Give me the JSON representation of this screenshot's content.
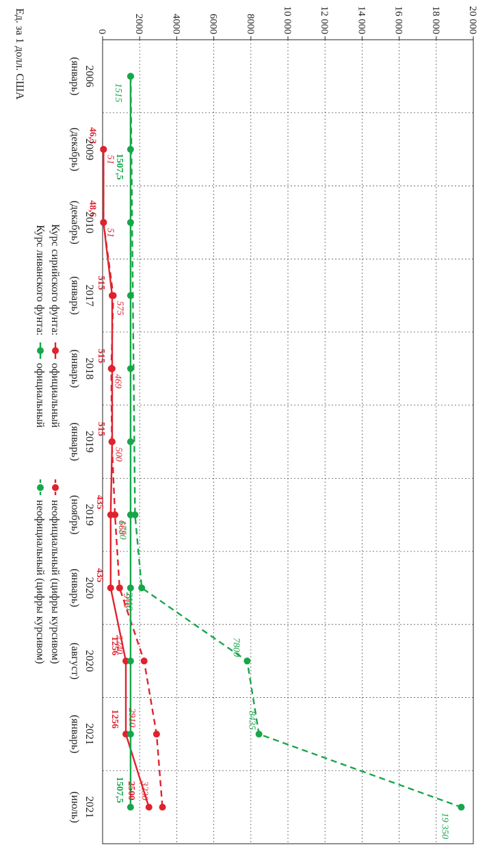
{
  "chart_data": {
    "type": "line",
    "ylabel": "Ед. за 1 долл. США",
    "ylim": [
      0,
      20000
    ],
    "yticks": [
      0,
      2000,
      4000,
      6000,
      8000,
      10000,
      12000,
      14000,
      16000,
      18000,
      20000
    ],
    "ytick_labels": [
      "0",
      "2000",
      "4000",
      "6000",
      "8000",
      "10 000",
      "12 000",
      "14 000",
      "16 000",
      "18 000",
      "20 000"
    ],
    "categories": [
      [
        "2006",
        "(январь)"
      ],
      [
        "2009",
        "(декабрь)"
      ],
      [
        "2010",
        "(декабрь)"
      ],
      [
        "2017",
        "(январь)"
      ],
      [
        "2018",
        "(январь)"
      ],
      [
        "2019",
        "(январь)"
      ],
      [
        "2019",
        "(ноябрь)"
      ],
      [
        "2020",
        "(январь)"
      ],
      [
        "2020",
        "(август)"
      ],
      [
        "2021",
        "(январь)"
      ],
      [
        "2021",
        "(июль)"
      ]
    ],
    "grid": true,
    "series": [
      {
        "key": "syr_official",
        "name": "официальный",
        "group": "Курс сирийского фунта:",
        "color": "#e0222e",
        "dashed": false,
        "points": [
          [
            1,
            46.3
          ],
          [
            2,
            48.6
          ],
          [
            3,
            515
          ],
          [
            4,
            515
          ],
          [
            5,
            515
          ],
          [
            6,
            435
          ],
          [
            7,
            435
          ],
          [
            8,
            1256
          ],
          [
            9,
            1256
          ],
          [
            10,
            2500
          ]
        ],
        "labels": [
          "46,3",
          "48,6",
          "515",
          "515",
          "515",
          "435",
          "435",
          "1256",
          "1256",
          "2500"
        ],
        "label_style": "bold"
      },
      {
        "key": "syr_unofficial",
        "name": "неофициальный (цифры курсивом)",
        "group": "Курс сирийского фунта:",
        "color": "#e0222e",
        "dashed": true,
        "points": [
          [
            1,
            51
          ],
          [
            2,
            51
          ],
          [
            3,
            575
          ],
          [
            4,
            469
          ],
          [
            5,
            500
          ],
          [
            6,
            668
          ],
          [
            7,
            916
          ],
          [
            8,
            2240
          ],
          [
            9,
            2910
          ],
          [
            10,
            3230
          ]
        ],
        "labels": [
          "51",
          "51",
          "575",
          "469",
          "500",
          "668",
          "916",
          "2240",
          "2910",
          "3230"
        ],
        "label_style": "italic"
      },
      {
        "key": "leb_official",
        "name": "официальный",
        "group": "Курс ливанского фунта:",
        "color": "#17a64a",
        "dashed": false,
        "points": [
          [
            0,
            1507.5
          ],
          [
            1,
            1507.5
          ],
          [
            2,
            1507.5
          ],
          [
            3,
            1507.5
          ],
          [
            4,
            1507.5
          ],
          [
            5,
            1507.5
          ],
          [
            6,
            1507.5
          ],
          [
            7,
            1507.5
          ],
          [
            8,
            1507.5
          ],
          [
            9,
            1507.5
          ],
          [
            10,
            1507.5
          ]
        ],
        "labels": [
          "1507,5",
          "1507,5"
        ],
        "label_indices": [
          1,
          10
        ],
        "label_style": "bold"
      },
      {
        "key": "leb_unofficial",
        "name": "неофициальный (цифры курсивом)",
        "group": "Курс ливанского фунта:",
        "color": "#17a64a",
        "dashed": true,
        "points": [
          [
            0,
            1515
          ],
          [
            6,
            1750
          ],
          [
            7,
            2110
          ],
          [
            8,
            7800
          ],
          [
            9,
            8435
          ],
          [
            10,
            19350
          ]
        ],
        "labels": [
          "1515",
          "1750",
          "2110",
          "7800",
          "8435",
          "19 350"
        ],
        "label_style": "italic"
      }
    ],
    "legend": {
      "placement": "bottom",
      "groups": [
        "Курс сирийского фунта:",
        "Курс ливанского фунта:"
      ]
    }
  }
}
